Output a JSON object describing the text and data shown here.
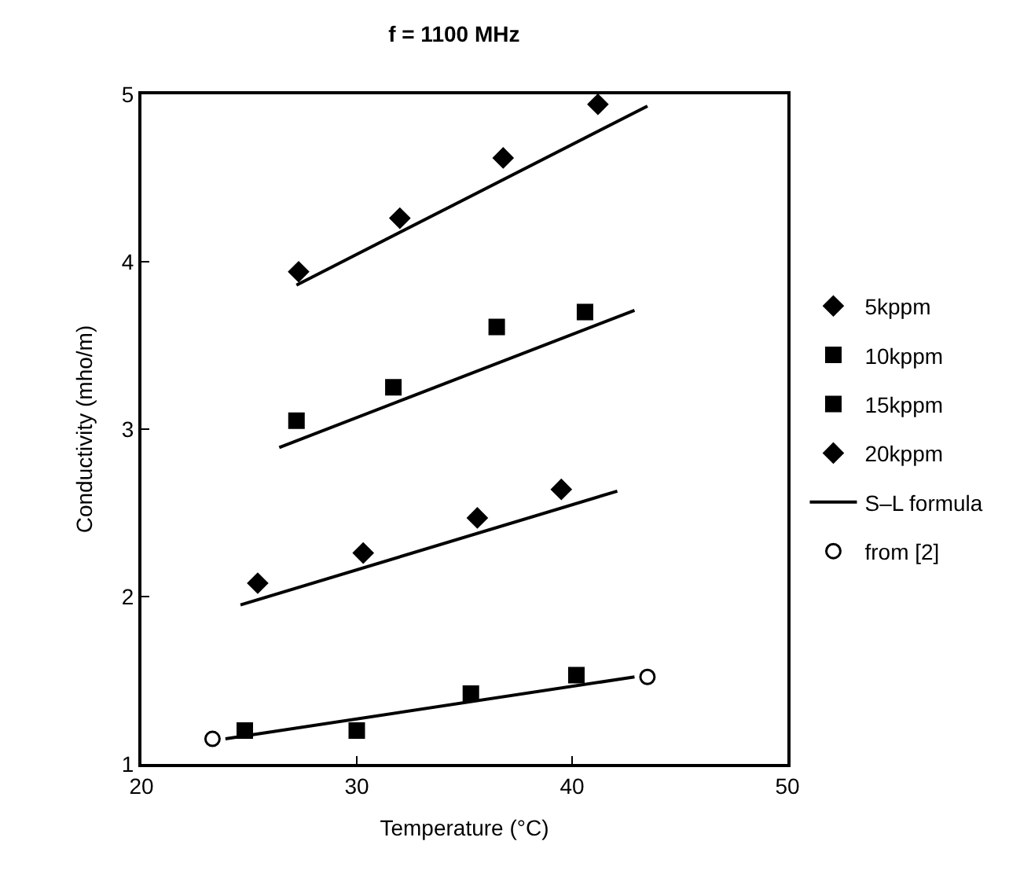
{
  "chart_data": {
    "type": "scatter",
    "title": "f = 1100 MHz",
    "xlabel": "Temperature (°C)",
    "ylabel": "Conductivity (mho/m)",
    "xlim": [
      20,
      50
    ],
    "xticks": [
      20,
      30,
      40,
      50
    ],
    "ylim": [
      1,
      5
    ],
    "yticks": [
      1,
      2,
      3,
      4,
      5
    ],
    "legend": "right",
    "series": [
      {
        "name": "5kppm",
        "marker": "diamond",
        "color": "#000000",
        "x": [
          25.4,
          30.3,
          35.6,
          39.5
        ],
        "values": [
          2.08,
          2.26,
          2.47,
          2.64
        ]
      },
      {
        "name": "10kppm",
        "marker": "square",
        "color": "#000000",
        "x": [
          24.8,
          30.0,
          35.3,
          40.2
        ],
        "values": [
          1.2,
          1.2,
          1.42,
          1.53
        ]
      },
      {
        "name": "15kppm",
        "marker": "square",
        "color": "#000000",
        "x": [
          27.2,
          31.7,
          36.5,
          40.6
        ],
        "values": [
          3.05,
          3.25,
          3.61,
          3.7
        ]
      },
      {
        "name": "20kppm",
        "marker": "diamond",
        "color": "#000000",
        "x": [
          27.3,
          32.0,
          36.8,
          41.2
        ],
        "values": [
          3.94,
          4.26,
          4.62,
          4.94
        ]
      },
      {
        "name": "S–L formula",
        "type": "line",
        "line_style": "solid",
        "color": "#000000",
        "x": [
          24.6,
          42.1
        ],
        "values": [
          1.95,
          2.63
        ]
      },
      {
        "type": "line",
        "line_style": "solid",
        "color": "#000000",
        "x": [
          23.9,
          42.9
        ],
        "values": [
          1.15,
          1.52
        ]
      },
      {
        "type": "line",
        "line_style": "solid",
        "color": "#000000",
        "x": [
          26.4,
          42.9
        ],
        "values": [
          2.89,
          3.71
        ]
      },
      {
        "type": "line",
        "line_style": "solid",
        "color": "#000000",
        "x": [
          27.2,
          43.5
        ],
        "values": [
          3.86,
          4.93
        ]
      },
      {
        "name": "from [2]",
        "marker": "circle",
        "color": "#000000",
        "x": [
          23.3,
          43.5
        ],
        "values": [
          1.15,
          1.52
        ]
      }
    ]
  }
}
